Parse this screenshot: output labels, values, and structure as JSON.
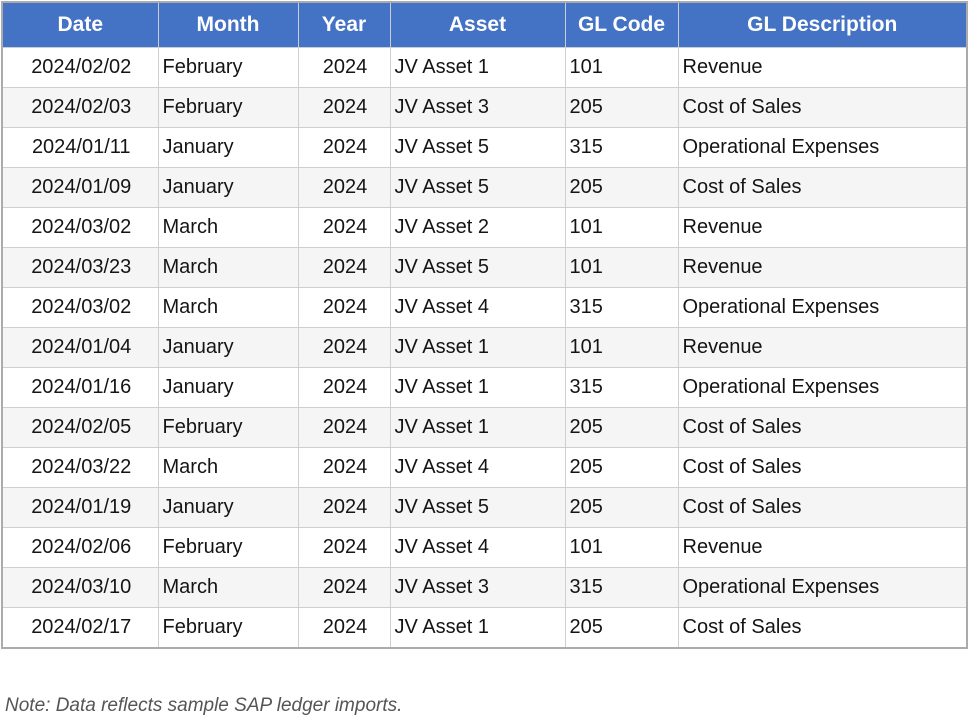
{
  "chart_data": {
    "type": "table",
    "title": "",
    "columns": [
      "Date",
      "Month",
      "Year",
      "Asset",
      "GL Code",
      "GL Description"
    ],
    "rows": [
      {
        "date": "2024/02/02",
        "month": "February",
        "year": "2024",
        "asset": "JV Asset 1",
        "gl_code": "101",
        "gl_description": "Revenue"
      },
      {
        "date": "2024/02/03",
        "month": "February",
        "year": "2024",
        "asset": "JV Asset 3",
        "gl_code": "205",
        "gl_description": "Cost of Sales"
      },
      {
        "date": "2024/01/11",
        "month": "January",
        "year": "2024",
        "asset": "JV Asset 5",
        "gl_code": "315",
        "gl_description": "Operational Expenses"
      },
      {
        "date": "2024/01/09",
        "month": "January",
        "year": "2024",
        "asset": "JV Asset 5",
        "gl_code": "205",
        "gl_description": "Cost of Sales"
      },
      {
        "date": "2024/03/02",
        "month": "March",
        "year": "2024",
        "asset": "JV Asset 2",
        "gl_code": "101",
        "gl_description": "Revenue"
      },
      {
        "date": "2024/03/23",
        "month": "March",
        "year": "2024",
        "asset": "JV Asset 5",
        "gl_code": "101",
        "gl_description": "Revenue"
      },
      {
        "date": "2024/03/02",
        "month": "March",
        "year": "2024",
        "asset": "JV Asset 4",
        "gl_code": "315",
        "gl_description": "Operational Expenses"
      },
      {
        "date": "2024/01/04",
        "month": "January",
        "year": "2024",
        "asset": "JV Asset 1",
        "gl_code": "101",
        "gl_description": "Revenue"
      },
      {
        "date": "2024/01/16",
        "month": "January",
        "year": "2024",
        "asset": "JV Asset 1",
        "gl_code": "315",
        "gl_description": "Operational Expenses"
      },
      {
        "date": "2024/02/05",
        "month": "February",
        "year": "2024",
        "asset": "JV Asset 1",
        "gl_code": "205",
        "gl_description": "Cost of Sales"
      },
      {
        "date": "2024/03/22",
        "month": "March",
        "year": "2024",
        "asset": "JV Asset 4",
        "gl_code": "205",
        "gl_description": "Cost of Sales"
      },
      {
        "date": "2024/01/19",
        "month": "January",
        "year": "2024",
        "asset": "JV Asset 5",
        "gl_code": "205",
        "gl_description": "Cost of Sales"
      },
      {
        "date": "2024/02/06",
        "month": "February",
        "year": "2024",
        "asset": "JV Asset 4",
        "gl_code": "101",
        "gl_description": "Revenue"
      },
      {
        "date": "2024/03/10",
        "month": "March",
        "year": "2024",
        "asset": "JV Asset 3",
        "gl_code": "315",
        "gl_description": "Operational Expenses"
      },
      {
        "date": "2024/02/17",
        "month": "February",
        "year": "2024",
        "asset": "JV Asset 1",
        "gl_code": "205",
        "gl_description": "Cost of Sales"
      }
    ]
  },
  "note": "Note: Data reflects sample SAP ledger imports.",
  "colors": {
    "header_bg": "#4472C4",
    "header_text": "#FFFFFF",
    "row_bg": "#FFFFFF",
    "row_alt_bg": "#F5F5F5",
    "inner_border": "#CFCFCF",
    "outer_border": "#ABABAB",
    "note_text": "#555555"
  }
}
